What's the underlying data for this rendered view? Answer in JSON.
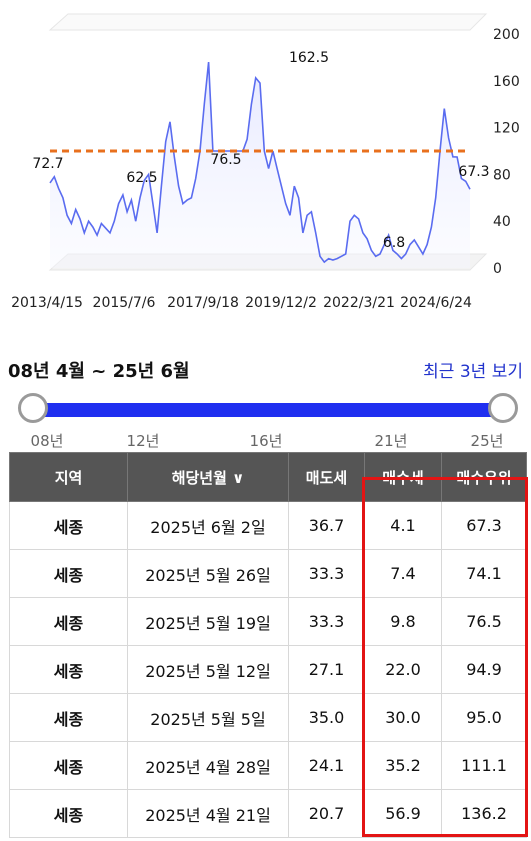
{
  "chart_data": {
    "type": "line",
    "x_tick_labels": [
      "2013/4/15",
      "2015/7/6",
      "2017/9/18",
      "2019/12/2",
      "2022/3/21",
      "2024/6/24"
    ],
    "y_ticks": [
      0,
      40,
      80,
      120,
      160,
      200
    ],
    "ylim": [
      0,
      200
    ],
    "reference_line": 100,
    "annotations": [
      "72.7",
      "62.5",
      "76.5",
      "162.5",
      "6.8",
      "67.3"
    ],
    "series": [
      {
        "color": "#5a6cf0",
        "points": [
          [
            0,
            72.7
          ],
          [
            1,
            78
          ],
          [
            2,
            68
          ],
          [
            3,
            60
          ],
          [
            4,
            45
          ],
          [
            5,
            38
          ],
          [
            6,
            50
          ],
          [
            7,
            42
          ],
          [
            8,
            30
          ],
          [
            9,
            40
          ],
          [
            10,
            35
          ],
          [
            11,
            28
          ],
          [
            12,
            38
          ],
          [
            13,
            34
          ],
          [
            14,
            30
          ],
          [
            15,
            40
          ],
          [
            16,
            55
          ],
          [
            17,
            62.5
          ],
          [
            18,
            48
          ],
          [
            19,
            58
          ],
          [
            20,
            40
          ],
          [
            21,
            60
          ],
          [
            22,
            75
          ],
          [
            23,
            80
          ],
          [
            24,
            55
          ],
          [
            25,
            30
          ],
          [
            26,
            70
          ],
          [
            27,
            108
          ],
          [
            28,
            125
          ],
          [
            29,
            95
          ],
          [
            30,
            70
          ],
          [
            31,
            55
          ],
          [
            32,
            58
          ],
          [
            33,
            60
          ],
          [
            34,
            76.5
          ],
          [
            35,
            100
          ],
          [
            36,
            140
          ],
          [
            37,
            176
          ],
          [
            38,
            100
          ],
          [
            39,
            100
          ],
          [
            40,
            100
          ],
          [
            41,
            100
          ],
          [
            42,
            100
          ],
          [
            43,
            100
          ],
          [
            44,
            100
          ],
          [
            45,
            100
          ],
          [
            46,
            110
          ],
          [
            47,
            140
          ],
          [
            48,
            162.5
          ],
          [
            49,
            158
          ],
          [
            50,
            100
          ],
          [
            51,
            85
          ],
          [
            52,
            100
          ],
          [
            53,
            85
          ],
          [
            54,
            70
          ],
          [
            55,
            55
          ],
          [
            56,
            45
          ],
          [
            57,
            70
          ],
          [
            58,
            60
          ],
          [
            59,
            30
          ],
          [
            60,
            45
          ],
          [
            61,
            48
          ],
          [
            62,
            30
          ],
          [
            63,
            10
          ],
          [
            64,
            5
          ],
          [
            65,
            8
          ],
          [
            66,
            6.8
          ],
          [
            67,
            8
          ],
          [
            68,
            10
          ],
          [
            69,
            12
          ],
          [
            70,
            40
          ],
          [
            71,
            45
          ],
          [
            72,
            42
          ],
          [
            73,
            30
          ],
          [
            74,
            25
          ],
          [
            75,
            15
          ],
          [
            76,
            10
          ],
          [
            77,
            12
          ],
          [
            78,
            20
          ],
          [
            79,
            28
          ],
          [
            80,
            15
          ],
          [
            81,
            12
          ],
          [
            82,
            8
          ],
          [
            83,
            12
          ],
          [
            84,
            20
          ],
          [
            85,
            24
          ],
          [
            86,
            18
          ],
          [
            87,
            12
          ],
          [
            88,
            20
          ],
          [
            89,
            35
          ],
          [
            90,
            60
          ],
          [
            91,
            100
          ],
          [
            92,
            136.2
          ],
          [
            93,
            111.1
          ],
          [
            94,
            95.0
          ],
          [
            95,
            94.9
          ],
          [
            96,
            76.5
          ],
          [
            97,
            74.1
          ],
          [
            98,
            67.3
          ]
        ]
      }
    ]
  },
  "range": {
    "title": "08년 4월 ~ 25년 6월",
    "recent_link": "최근 3년 보기",
    "ticks": [
      "08년",
      "12년",
      "16년",
      "21년",
      "25년"
    ]
  },
  "table": {
    "headers": [
      "지역",
      "해당년월 ∨",
      "매도세",
      "매수세",
      "매수우위"
    ],
    "rows": [
      [
        "세종",
        "2025년 6월 2일",
        "36.7",
        "4.1",
        "67.3"
      ],
      [
        "세종",
        "2025년 5월 26일",
        "33.3",
        "7.4",
        "74.1"
      ],
      [
        "세종",
        "2025년 5월 19일",
        "33.3",
        "9.8",
        "76.5"
      ],
      [
        "세종",
        "2025년 5월 12일",
        "27.1",
        "22.0",
        "94.9"
      ],
      [
        "세종",
        "2025년 5월 5일",
        "35.0",
        "30.0",
        "95.0"
      ],
      [
        "세종",
        "2025년 4월 28일",
        "24.1",
        "35.2",
        "111.1"
      ],
      [
        "세종",
        "2025년 4월 21일",
        "20.7",
        "56.9",
        "136.2"
      ]
    ]
  }
}
